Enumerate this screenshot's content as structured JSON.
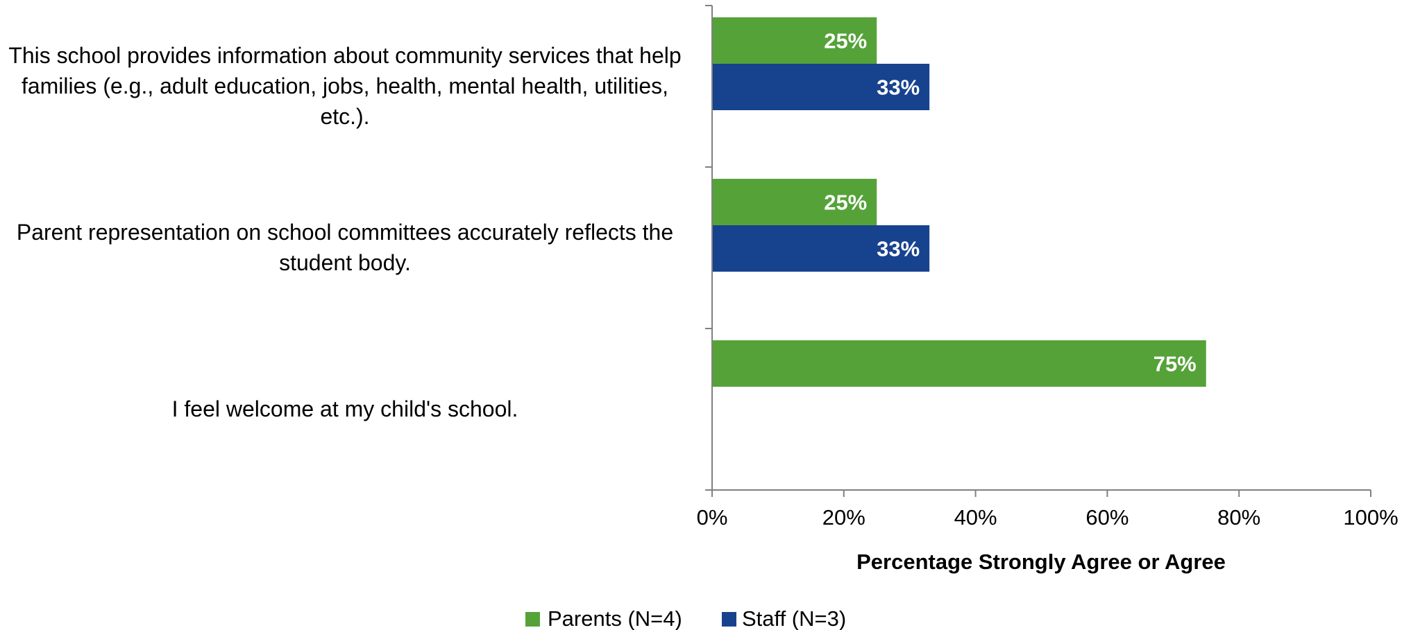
{
  "chart_data": {
    "type": "bar",
    "orientation": "horizontal",
    "categories": [
      "This school provides information about community services that help families (e.g., adult education, jobs, health, mental health, utilities, etc.).",
      "Parent representation on school committees accurately reflects the student body.",
      "I feel welcome at my child's school."
    ],
    "series": [
      {
        "name": "Parents (N=4)",
        "color": "#55A239",
        "values": [
          25,
          25,
          75
        ],
        "labels": [
          "25%",
          "25%",
          "75%"
        ]
      },
      {
        "name": "Staff (N=3)",
        "color": "#17428E",
        "values": [
          33,
          33,
          null
        ],
        "labels": [
          "33%",
          "33%",
          ""
        ]
      }
    ],
    "xlabel": "Percentage Strongly Agree or Agree",
    "xlim": [
      0,
      100
    ],
    "xticks": [
      "0%",
      "20%",
      "40%",
      "60%",
      "80%",
      "100%"
    ],
    "legend_position": "bottom",
    "grid": false
  }
}
